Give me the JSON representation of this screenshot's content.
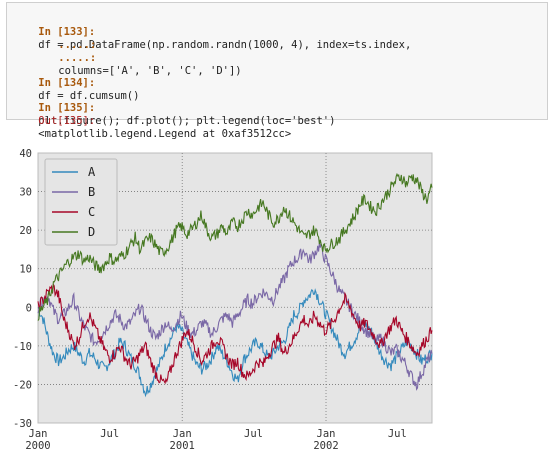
{
  "notebook": {
    "cells": [
      {
        "prompt": "In [133]:",
        "code": "df = pd.DataFrame(np.random.randn(1000, 4), index=ts.index,",
        "cont": ".....:",
        "code2": "columns=['A', 'B', 'C', 'D'])",
        "cont2": ".....:"
      },
      {
        "prompt": "In [134]:",
        "code": "df = df.cumsum()"
      },
      {
        "prompt": "In [135]:",
        "code": "plt.figure(); df.plot(); plt.legend(loc='best')"
      },
      {
        "prompt": "Out[135]:",
        "code": "<matplotlib.legend.Legend at 0xaf3512cc>"
      }
    ]
  },
  "colors": {
    "A": "#348abd",
    "B": "#7a68a6",
    "C": "#a60628",
    "D": "#467821",
    "plot_bg": "#e5e5e5"
  },
  "chart_data": {
    "type": "line",
    "x_ticks": [
      "Jan\n2000",
      "Jul",
      "Jan\n2001",
      "Jul",
      "Jan\n2002",
      "Jul"
    ],
    "x_tick_lines": [
      [
        "Jan",
        "2000"
      ],
      [
        "Jul",
        ""
      ],
      [
        "Jan",
        "2001"
      ],
      [
        "Jul",
        ""
      ],
      [
        "Jan",
        "2002"
      ],
      [
        "Jul",
        ""
      ]
    ],
    "ylim": [
      -30,
      40
    ],
    "y_ticks": [
      -30,
      -20,
      -10,
      0,
      10,
      20,
      30,
      40
    ],
    "x_range_days": [
      0,
      1000
    ],
    "grid": true,
    "legend_loc": "upper-left",
    "series": [
      {
        "name": "A",
        "values": [
          0,
          -3,
          -8,
          -12,
          -14,
          -13,
          -11,
          -10,
          -12,
          -14,
          -12,
          -13,
          -15,
          -16,
          -14,
          -12,
          -9,
          -10,
          -13,
          -15,
          -18,
          -22,
          -20,
          -17,
          -14,
          -10,
          -8,
          -5,
          -6,
          -9,
          -12,
          -15,
          -16,
          -15,
          -13,
          -10,
          -12,
          -14,
          -17,
          -19,
          -14,
          -12,
          -10,
          -9,
          -11,
          -13,
          -12,
          -10,
          -9,
          -6,
          -2,
          -1,
          2,
          3,
          5,
          2,
          -1,
          -4,
          -7,
          -10,
          -12,
          -10,
          -8,
          -5,
          -4,
          -6,
          -9,
          -12,
          -14,
          -15,
          -13,
          -11,
          -9,
          -10,
          -12,
          -14,
          -13,
          -12
        ]
      },
      {
        "name": "B",
        "values": [
          0,
          2,
          3,
          -1,
          -3,
          -2,
          0,
          2,
          -2,
          -5,
          -7,
          -9,
          -8,
          -6,
          -4,
          -2,
          -3,
          -5,
          -4,
          -2,
          0,
          -3,
          -6,
          -8,
          -6,
          -4,
          -6,
          -4,
          -2,
          -5,
          -7,
          -6,
          -4,
          -5,
          -7,
          -5,
          -3,
          -2,
          -4,
          -2,
          0,
          2,
          1,
          3,
          4,
          3,
          2,
          5,
          7,
          10,
          12,
          13,
          15,
          12,
          14,
          16,
          13,
          10,
          7,
          4,
          2,
          0,
          -2,
          -4,
          -6,
          -7,
          -9,
          -8,
          -10,
          -12,
          -11,
          -13,
          -15,
          -18,
          -20,
          -17,
          -14,
          -12
        ]
      },
      {
        "name": "C",
        "values": [
          0,
          2,
          4,
          5,
          3,
          -3,
          -6,
          -10,
          -8,
          -4,
          -2,
          -5,
          -8,
          -11,
          -13,
          -12,
          -10,
          -13,
          -15,
          -14,
          -12,
          -10,
          -14,
          -17,
          -19,
          -20,
          -16,
          -12,
          -9,
          -6,
          -8,
          -11,
          -14,
          -12,
          -10,
          -8,
          -10,
          -13,
          -15,
          -14,
          -17,
          -18,
          -16,
          -14,
          -15,
          -12,
          -10,
          -8,
          -12,
          -10,
          -8,
          -5,
          -3,
          -5,
          -2,
          -4,
          -6,
          -5,
          -3,
          0,
          2,
          0,
          -3,
          -5,
          -4,
          -6,
          -8,
          -10,
          -7,
          -5,
          -3,
          -6,
          -8,
          -10,
          -12,
          -10,
          -8,
          -6
        ]
      },
      {
        "name": "D",
        "values": [
          -2,
          0,
          2,
          6,
          8,
          10,
          12,
          13,
          14,
          12,
          13,
          11,
          10,
          11,
          13,
          12,
          13,
          14,
          16,
          18,
          15,
          17,
          18,
          16,
          14,
          15,
          17,
          20,
          21,
          19,
          20,
          22,
          24,
          20,
          18,
          19,
          21,
          19,
          22,
          21,
          23,
          25,
          24,
          26,
          27,
          24,
          22,
          23,
          26,
          24,
          22,
          20,
          18,
          19,
          20,
          18,
          15,
          16,
          17,
          18,
          20,
          22,
          24,
          27,
          28,
          26,
          25,
          27,
          29,
          31,
          33,
          34,
          32,
          34,
          33,
          30,
          28,
          31
        ]
      }
    ]
  }
}
